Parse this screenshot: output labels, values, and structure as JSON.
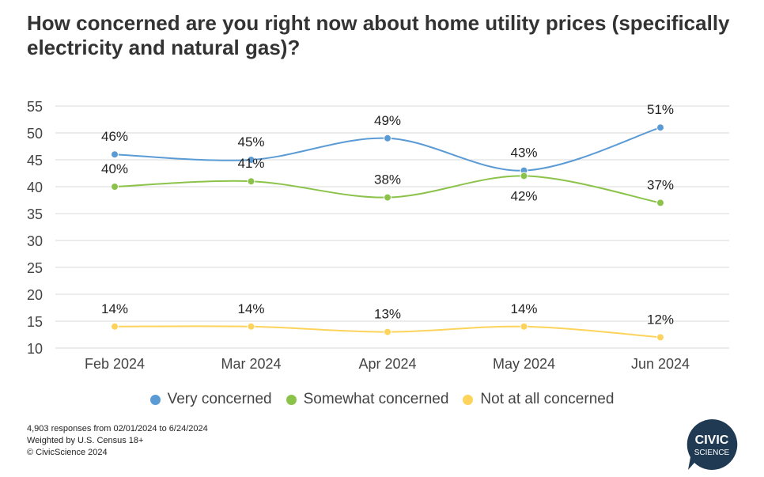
{
  "title": "How concerned are you right now about home utility prices (specifically electricity and natural gas)?",
  "chart_data": {
    "type": "line",
    "categories": [
      "Feb 2024",
      "Mar 2024",
      "Apr 2024",
      "May 2024",
      "Jun 2024"
    ],
    "y_ticks": [
      10,
      15,
      20,
      25,
      30,
      35,
      40,
      45,
      50,
      55
    ],
    "ylim": [
      10,
      55
    ],
    "grid": true,
    "legend_position": "bottom",
    "series": [
      {
        "name": "Very concerned",
        "color": "#5b9bd5",
        "values": [
          46,
          45,
          49,
          43,
          51
        ],
        "labels": [
          "46%",
          "45%",
          "49%",
          "43%",
          "51%"
        ]
      },
      {
        "name": "Somewhat concerned",
        "color": "#8bc34a",
        "values": [
          40,
          41,
          38,
          42,
          37
        ],
        "labels": [
          "40%",
          "41%",
          "38%",
          "42%",
          "37%"
        ]
      },
      {
        "name": "Not at all concerned",
        "color": "#fdd35c",
        "values": [
          14,
          14,
          13,
          14,
          12
        ],
        "labels": [
          "14%",
          "14%",
          "13%",
          "14%",
          "12%"
        ]
      }
    ]
  },
  "footnotes": [
    "4,903 responses from 02/01/2024 to 6/24/2024",
    "Weighted by U.S. Census 18+",
    "© CivicScience 2024"
  ],
  "logo": {
    "line1": "CIVIC",
    "line2": "SCIENCE",
    "color": "#1f3a52"
  }
}
